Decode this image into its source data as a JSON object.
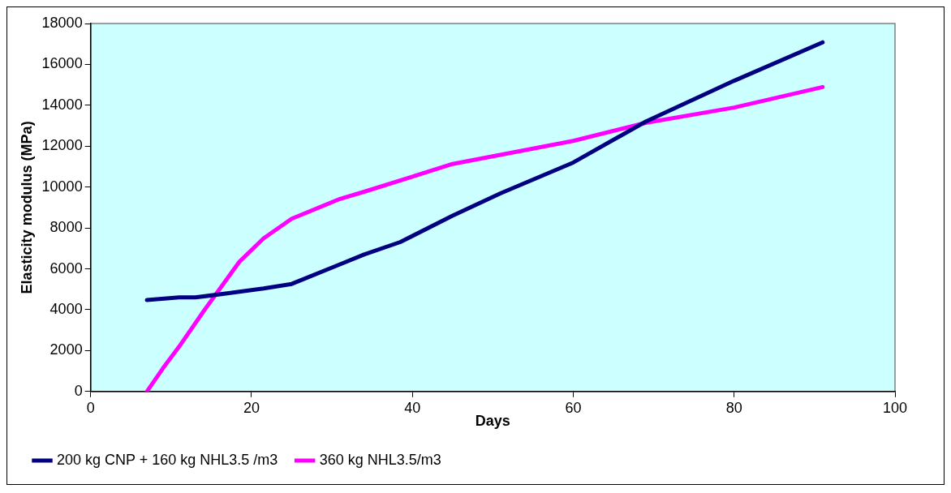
{
  "chart_data": {
    "type": "line",
    "xlabel": "Days",
    "ylabel": "Elasticity modulus (MPa)",
    "xlim": [
      0,
      100
    ],
    "xticks": [
      0,
      20,
      40,
      60,
      80,
      100
    ],
    "ylim": [
      0,
      18000
    ],
    "yticks": [
      0,
      2000,
      4000,
      6000,
      8000,
      10000,
      12000,
      14000,
      16000,
      18000
    ],
    "grid": false,
    "legend": "bottom",
    "marker": "none",
    "line_style": "solid",
    "series": [
      {
        "name": "200 kg CNP + 160 kg NHL3.5 /m3",
        "color": "#000080",
        "x": [
          7,
          11,
          13,
          17,
          21.5,
          25,
          31,
          34,
          38.5,
          45,
          51,
          60,
          69,
          80,
          91
        ],
        "values": [
          4470,
          4600,
          4600,
          4800,
          5040,
          5260,
          6220,
          6700,
          7310,
          8600,
          9700,
          11200,
          13200,
          15200,
          17080
        ]
      },
      {
        "name": "360 kg NHL3.5/m3",
        "color": "#ff00ff",
        "x": [
          7,
          9,
          11,
          14,
          18.5,
          21.5,
          25,
          31,
          34,
          40,
          45,
          60,
          69,
          80,
          91
        ],
        "values": [
          0,
          1140,
          2190,
          3900,
          6350,
          7490,
          8450,
          9420,
          9770,
          10510,
          11130,
          12260,
          13140,
          13890,
          14890
        ]
      }
    ]
  }
}
